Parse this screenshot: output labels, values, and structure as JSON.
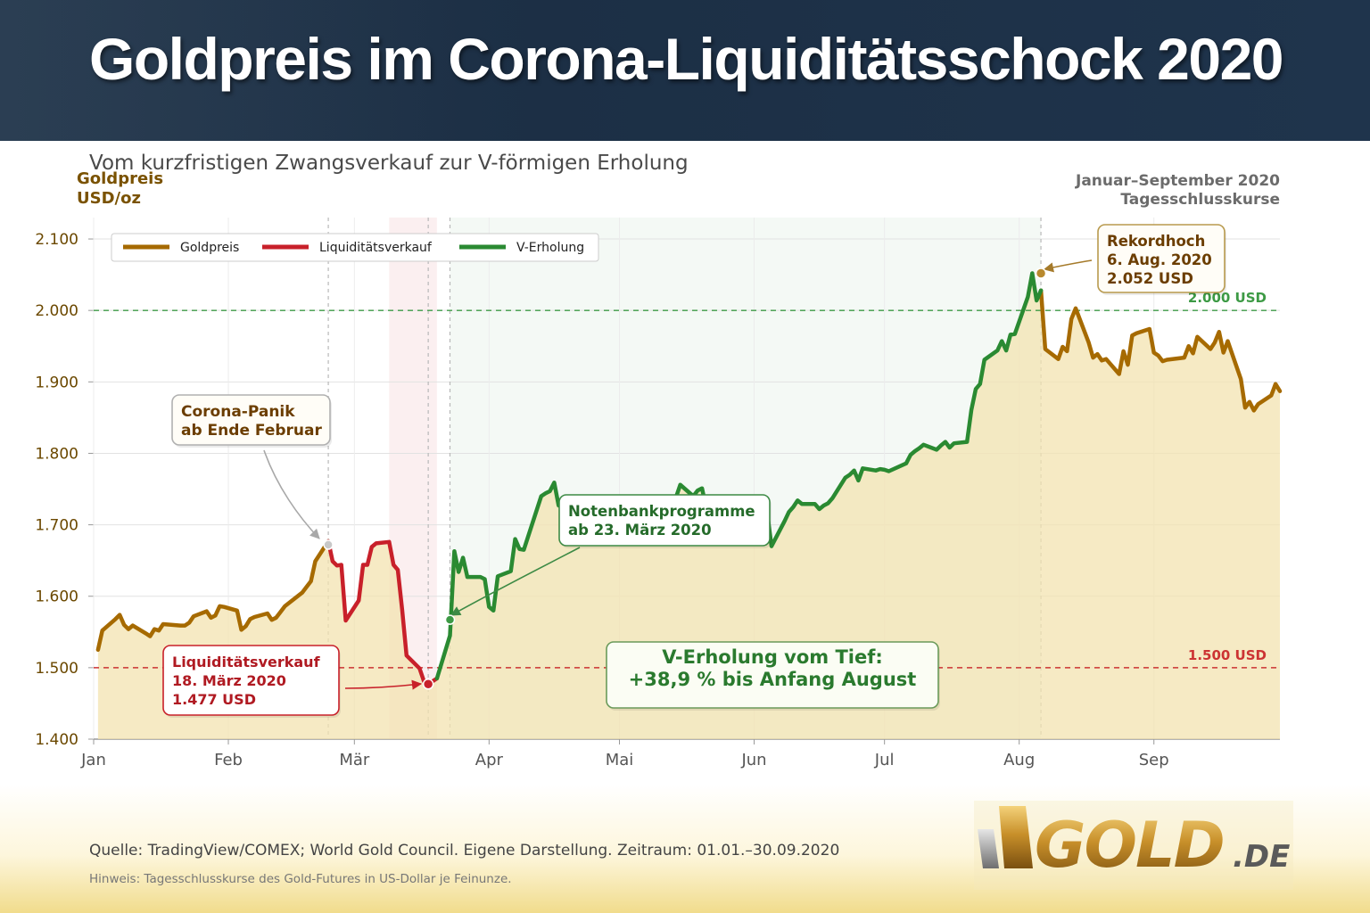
{
  "header": {
    "title": "Goldpreis im Corona-Liquiditätsschock 2020"
  },
  "subtitle": "Vom kurzfristigen Zwangsverkauf zur V-förmigen Erholung",
  "y_title": [
    "Goldpreis",
    "USD/oz"
  ],
  "period": [
    "Januar–September 2020",
    "Tagesschlusskurse"
  ],
  "footer": {
    "source": "Quelle: TradingView/COMEX; World Gold Council.  Eigene Darstellung.  Zeitraum: 01.01.–30.09.2020",
    "note": "Hinweis: Tagesschlusskurse des Gold-Futures in US-Dollar je Feinunze.",
    "logo_text": "GOLD",
    "logo_suffix": ".DE"
  },
  "colors": {
    "gold": "#a66a00",
    "red": "#c8202a",
    "green": "#2a8a32",
    "fill": "#f3e3b0",
    "header": "#1f344c"
  },
  "chart_data": {
    "type": "line",
    "ylim": [
      1400,
      2130
    ],
    "xlim": [
      "2020-01-01",
      "2020-09-30"
    ],
    "y_ticks": [
      1400,
      1500,
      1600,
      1700,
      1800,
      1900,
      2000,
      2100
    ],
    "y_tick_labels": [
      "1.400",
      "1.500",
      "1.600",
      "1.700",
      "1.800",
      "1.900",
      "2.000",
      "2.100"
    ],
    "x_ticks": [
      {
        "date": "2020-01-01",
        "label": "Jan"
      },
      {
        "date": "2020-02-01",
        "label": "Feb"
      },
      {
        "date": "2020-03-01",
        "label": "Mär"
      },
      {
        "date": "2020-04-01",
        "label": "Apr"
      },
      {
        "date": "2020-05-01",
        "label": "Mai"
      },
      {
        "date": "2020-06-01",
        "label": "Jun"
      },
      {
        "date": "2020-07-01",
        "label": "Jul"
      },
      {
        "date": "2020-08-01",
        "label": "Aug"
      },
      {
        "date": "2020-09-01",
        "label": "Sep"
      }
    ],
    "grid": true,
    "legend_position": "top-left",
    "series": [
      {
        "name": "Goldpreis",
        "color": "#a66a00",
        "from": "2020-01-02",
        "to": "2020-09-30"
      },
      {
        "name": "Liquiditätsverkauf",
        "color": "#c8202a",
        "from": "2020-02-24",
        "to": "2020-03-20"
      },
      {
        "name": "V-Erholung",
        "color": "#2a8a32",
        "from": "2020-03-20",
        "to": "2020-08-06"
      }
    ],
    "x": [
      "2020-01-02",
      "2020-01-03",
      "2020-01-06",
      "2020-01-07",
      "2020-01-08",
      "2020-01-09",
      "2020-01-10",
      "2020-01-13",
      "2020-01-14",
      "2020-01-15",
      "2020-01-16",
      "2020-01-17",
      "2020-01-21",
      "2020-01-22",
      "2020-01-23",
      "2020-01-24",
      "2020-01-27",
      "2020-01-28",
      "2020-01-29",
      "2020-01-30",
      "2020-01-31",
      "2020-02-03",
      "2020-02-04",
      "2020-02-05",
      "2020-02-06",
      "2020-02-07",
      "2020-02-10",
      "2020-02-11",
      "2020-02-12",
      "2020-02-13",
      "2020-02-14",
      "2020-02-18",
      "2020-02-19",
      "2020-02-20",
      "2020-02-21",
      "2020-02-24",
      "2020-02-25",
      "2020-02-26",
      "2020-02-27",
      "2020-02-28",
      "2020-03-02",
      "2020-03-03",
      "2020-03-04",
      "2020-03-05",
      "2020-03-06",
      "2020-03-09",
      "2020-03-10",
      "2020-03-11",
      "2020-03-12",
      "2020-03-13",
      "2020-03-16",
      "2020-03-17",
      "2020-03-18",
      "2020-03-19",
      "2020-03-20",
      "2020-03-23",
      "2020-03-24",
      "2020-03-25",
      "2020-03-26",
      "2020-03-27",
      "2020-03-30",
      "2020-03-31",
      "2020-04-01",
      "2020-04-02",
      "2020-04-03",
      "2020-04-06",
      "2020-04-07",
      "2020-04-08",
      "2020-04-09",
      "2020-04-13",
      "2020-04-14",
      "2020-04-15",
      "2020-04-16",
      "2020-04-17",
      "2020-04-20",
      "2020-04-21",
      "2020-04-22",
      "2020-04-23",
      "2020-04-24",
      "2020-04-27",
      "2020-04-28",
      "2020-04-29",
      "2020-04-30",
      "2020-05-01",
      "2020-05-04",
      "2020-05-05",
      "2020-05-06",
      "2020-05-07",
      "2020-05-08",
      "2020-05-11",
      "2020-05-12",
      "2020-05-13",
      "2020-05-14",
      "2020-05-15",
      "2020-05-18",
      "2020-05-19",
      "2020-05-20",
      "2020-05-21",
      "2020-05-22",
      "2020-05-26",
      "2020-05-27",
      "2020-05-28",
      "2020-05-29",
      "2020-06-01",
      "2020-06-02",
      "2020-06-03",
      "2020-06-04",
      "2020-06-05",
      "2020-06-08",
      "2020-06-09",
      "2020-06-10",
      "2020-06-11",
      "2020-06-12",
      "2020-06-15",
      "2020-06-16",
      "2020-06-17",
      "2020-06-18",
      "2020-06-19",
      "2020-06-22",
      "2020-06-23",
      "2020-06-24",
      "2020-06-25",
      "2020-06-26",
      "2020-06-29",
      "2020-06-30",
      "2020-07-01",
      "2020-07-02",
      "2020-07-06",
      "2020-07-07",
      "2020-07-08",
      "2020-07-09",
      "2020-07-10",
      "2020-07-13",
      "2020-07-14",
      "2020-07-15",
      "2020-07-16",
      "2020-07-17",
      "2020-07-20",
      "2020-07-21",
      "2020-07-22",
      "2020-07-23",
      "2020-07-24",
      "2020-07-27",
      "2020-07-28",
      "2020-07-29",
      "2020-07-30",
      "2020-07-31",
      "2020-08-03",
      "2020-08-04",
      "2020-08-05",
      "2020-08-06",
      "2020-08-07",
      "2020-08-10",
      "2020-08-11",
      "2020-08-12",
      "2020-08-13",
      "2020-08-14",
      "2020-08-17",
      "2020-08-18",
      "2020-08-19",
      "2020-08-20",
      "2020-08-21",
      "2020-08-24",
      "2020-08-25",
      "2020-08-26",
      "2020-08-27",
      "2020-08-28",
      "2020-08-31",
      "2020-09-01",
      "2020-09-02",
      "2020-09-03",
      "2020-09-04",
      "2020-09-08",
      "2020-09-09",
      "2020-09-10",
      "2020-09-11",
      "2020-09-14",
      "2020-09-15",
      "2020-09-16",
      "2020-09-17",
      "2020-09-18",
      "2020-09-21",
      "2020-09-22",
      "2020-09-23",
      "2020-09-24",
      "2020-09-25",
      "2020-09-28",
      "2020-09-29",
      "2020-09-30"
    ],
    "y": [
      1525,
      1552,
      1568,
      1574,
      1560,
      1554,
      1559,
      1548,
      1544,
      1554,
      1552,
      1561,
      1559,
      1559,
      1563,
      1572,
      1579,
      1570,
      1573,
      1586,
      1585,
      1580,
      1553,
      1558,
      1568,
      1571,
      1576,
      1567,
      1570,
      1578,
      1586,
      1605,
      1613,
      1621,
      1649,
      1677,
      1649,
      1643,
      1644,
      1566,
      1594,
      1644,
      1644,
      1669,
      1674,
      1676,
      1644,
      1637,
      1581,
      1517,
      1499,
      1481,
      1477,
      1481,
      1485,
      1545,
      1663,
      1634,
      1654,
      1627,
      1627,
      1624,
      1585,
      1580,
      1628,
      1635,
      1680,
      1666,
      1665,
      1740,
      1744,
      1747,
      1759,
      1727,
      1723,
      1688,
      1715,
      1732,
      1736,
      1723,
      1702,
      1712,
      1714,
      1701,
      1710,
      1712,
      1705,
      1726,
      1713,
      1700,
      1707,
      1719,
      1738,
      1756,
      1740,
      1748,
      1751,
      1723,
      1729,
      1703,
      1708,
      1708,
      1705,
      1715,
      1698,
      1705,
      1717,
      1670,
      1705,
      1718,
      1725,
      1734,
      1729,
      1729,
      1722,
      1727,
      1730,
      1737,
      1766,
      1770,
      1776,
      1762,
      1779,
      1776,
      1778,
      1777,
      1775,
      1786,
      1798,
      1803,
      1807,
      1812,
      1805,
      1811,
      1816,
      1808,
      1814,
      1816,
      1861,
      1890,
      1897,
      1931,
      1944,
      1957,
      1944,
      1966,
      1967,
      2019,
      2052,
      2014,
      2028,
      1946,
      1932,
      1949,
      1943,
      1988,
      2003,
      1955,
      1934,
      1939,
      1930,
      1932,
      1911,
      1943,
      1924,
      1965,
      1968,
      1974,
      1941,
      1937,
      1929,
      1931,
      1934,
      1950,
      1940,
      1963,
      1946,
      1955,
      1970,
      1941,
      1957,
      1904,
      1864,
      1872,
      1860,
      1869,
      1881,
      1897,
      1887
    ]
  },
  "legend": [
    {
      "label": "Goldpreis",
      "color": "#a66a00"
    },
    {
      "label": "Liquiditätsverkauf",
      "color": "#c8202a"
    },
    {
      "label": "V-Erholung",
      "color": "#2a8a32"
    }
  ],
  "reference_lines": [
    {
      "value": 2000,
      "label": "2.000 USD",
      "color": "#3d9a45"
    },
    {
      "value": 1500,
      "label": "1.500 USD",
      "color": "#cc3333"
    }
  ],
  "annotations": [
    {
      "id": "corona",
      "lines": [
        "Corona-Panik",
        "ab Ende Februar"
      ],
      "date": "2020-02-24",
      "value": 1672
    },
    {
      "id": "low",
      "lines": [
        "Liquiditätsverkauf",
        "18. März 2020",
        "1.477 USD"
      ],
      "date": "2020-03-18",
      "value": 1477
    },
    {
      "id": "fed",
      "lines": [
        "Notenbankprogramme",
        "ab 23. März 2020"
      ],
      "date": "2020-03-23",
      "value": 1567
    },
    {
      "id": "record",
      "lines": [
        "Rekordhoch",
        "6. Aug. 2020",
        "2.052 USD"
      ],
      "date": "2020-08-06",
      "value": 2052
    },
    {
      "id": "recovery",
      "lines": [
        "V-Erholung vom Tief:",
        "+38,9 % bis Anfang August"
      ]
    }
  ]
}
